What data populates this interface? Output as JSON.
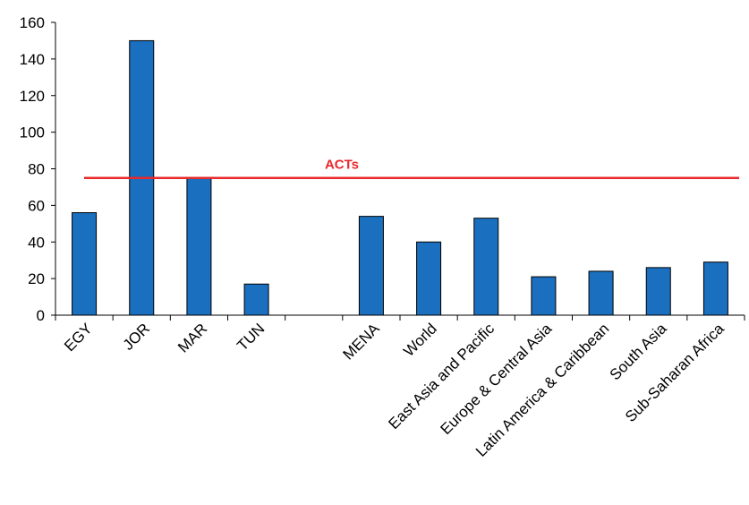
{
  "chart_data": {
    "type": "bar",
    "categories": [
      "EGY",
      "JOR",
      "MAR",
      "TUN",
      "",
      "MENA",
      "World",
      "East Asia and Pacific",
      "Europe & Central Asia",
      "Latin America & Caribbean",
      "South Asia",
      "Sub-Saharan Africa"
    ],
    "values": [
      56,
      150,
      75,
      17,
      null,
      54,
      40,
      53,
      21,
      24,
      26,
      29
    ],
    "yticks": [
      "0",
      "20",
      "40",
      "60",
      "80",
      "100",
      "120",
      "140",
      "160"
    ],
    "ylim": [
      0,
      160
    ],
    "reference_line": {
      "label": "ACTs",
      "value": 75,
      "color": "#e8282b"
    },
    "bar_color": "#1a6fbf",
    "title": "",
    "xlabel": "",
    "ylabel": "",
    "grid": false,
    "legend": "none"
  }
}
